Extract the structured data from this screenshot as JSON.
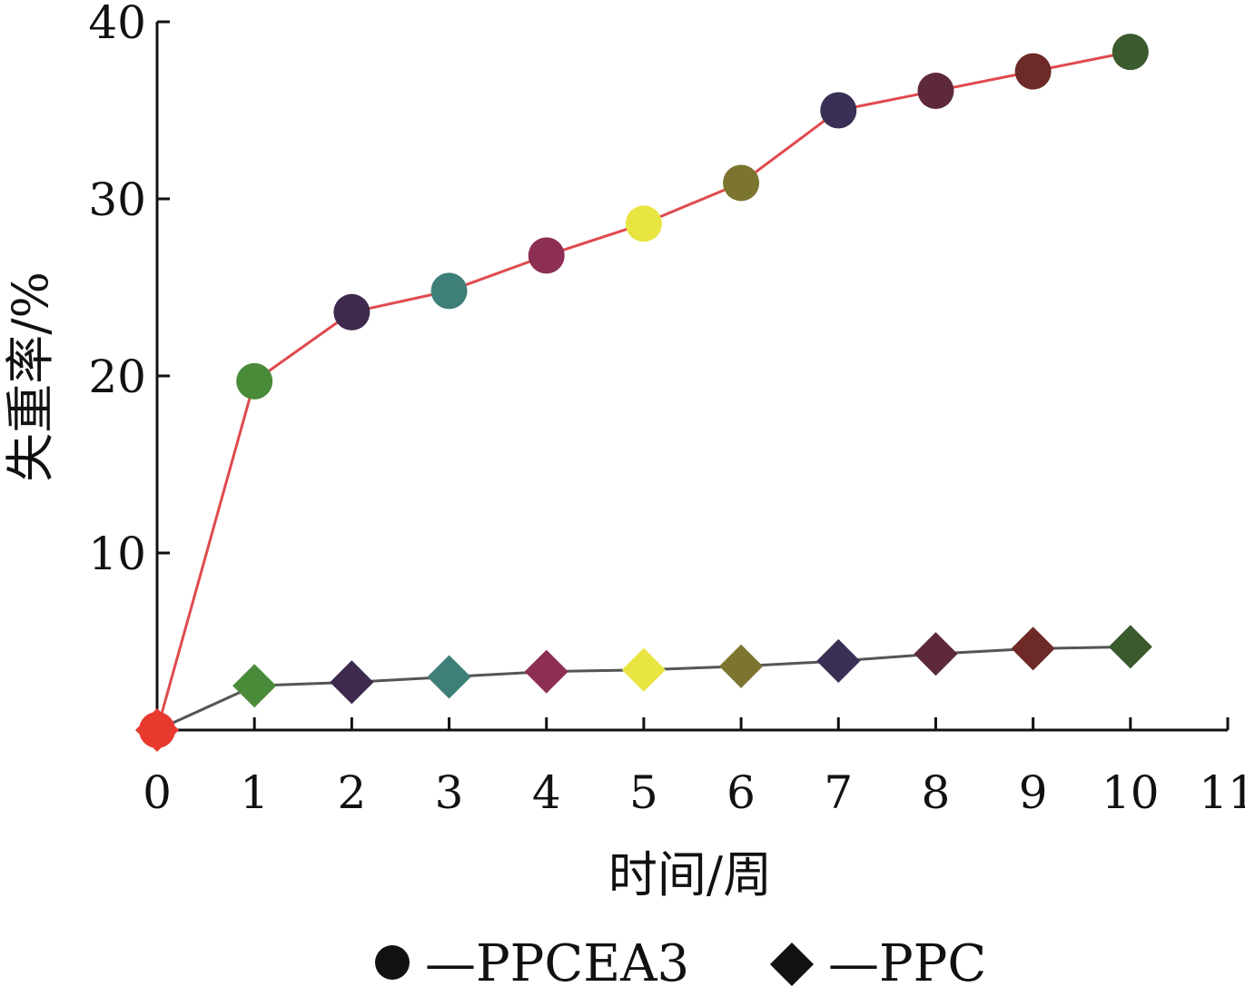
{
  "chart_data": {
    "type": "line",
    "xlabel": "时间/周",
    "ylabel": "失重率/%",
    "xlim": [
      0,
      11
    ],
    "ylim": [
      0,
      40
    ],
    "x_ticks": [
      "0",
      "1",
      "2",
      "3",
      "4",
      "5",
      "6",
      "7",
      "8",
      "9",
      "10",
      "11"
    ],
    "y_ticks": [
      "10",
      "20",
      "30",
      "40"
    ],
    "x": [
      0,
      1,
      2,
      3,
      4,
      5,
      6,
      7,
      8,
      9,
      10
    ],
    "series": [
      {
        "name": "PPCEA3",
        "legend_label": "—PPCEA3",
        "marker": "circle",
        "line_color": "#e04a4e",
        "values": [
          0,
          19.7,
          23.6,
          24.8,
          26.8,
          28.6,
          30.9,
          35.0,
          36.1,
          37.2,
          38.3
        ]
      },
      {
        "name": "PPC",
        "legend_label": "—PPC",
        "marker": "diamond",
        "line_color": "#555555",
        "values": [
          0,
          2.5,
          2.7,
          3.0,
          3.3,
          3.4,
          3.6,
          3.9,
          4.3,
          4.6,
          4.7
        ]
      }
    ],
    "point_colors": [
      "#e8392f",
      "#4a8b3a",
      "#3d2a4d",
      "#3f7f79",
      "#8d2f55",
      "#e8e542",
      "#7c7530",
      "#3a2f55",
      "#5e2a3a",
      "#6d2a26",
      "#3b5a2e"
    ],
    "legend_placement": "bottom-center",
    "grid": false
  }
}
